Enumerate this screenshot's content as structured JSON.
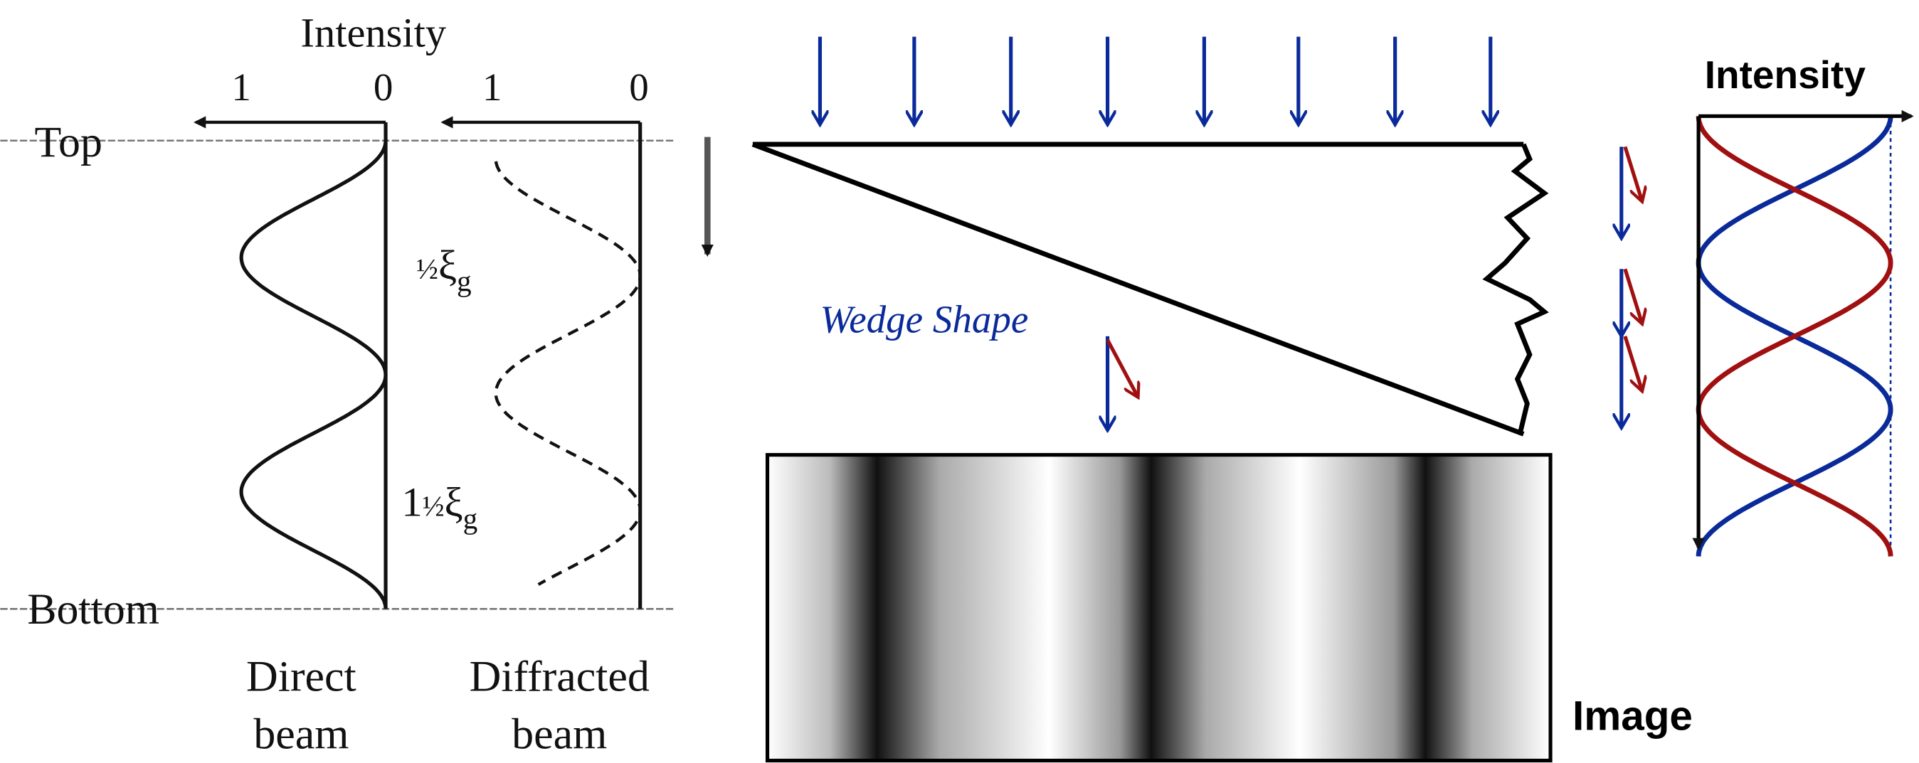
{
  "left_panel": {
    "intensity_label": "Intensity",
    "direct_scale": [
      "1",
      "0"
    ],
    "diffracted_scale": [
      "1",
      "0"
    ],
    "top_label": "Top",
    "bottom_label": "Bottom",
    "mark_1": {
      "fraction": "½",
      "symbol": "ξ",
      "subscript": "g"
    },
    "mark_2": {
      "whole": "1",
      "fraction": "½",
      "symbol": "ξ",
      "subscript": "g"
    },
    "direct_beam": [
      "Direct",
      "beam"
    ],
    "diffracted_beam": [
      "Diffracted",
      "beam"
    ]
  },
  "middle_panel": {
    "wedge_label": "Wedge Shape",
    "image_label": "Image"
  },
  "right_panel": {
    "intensity_label": "Intensity"
  }
}
